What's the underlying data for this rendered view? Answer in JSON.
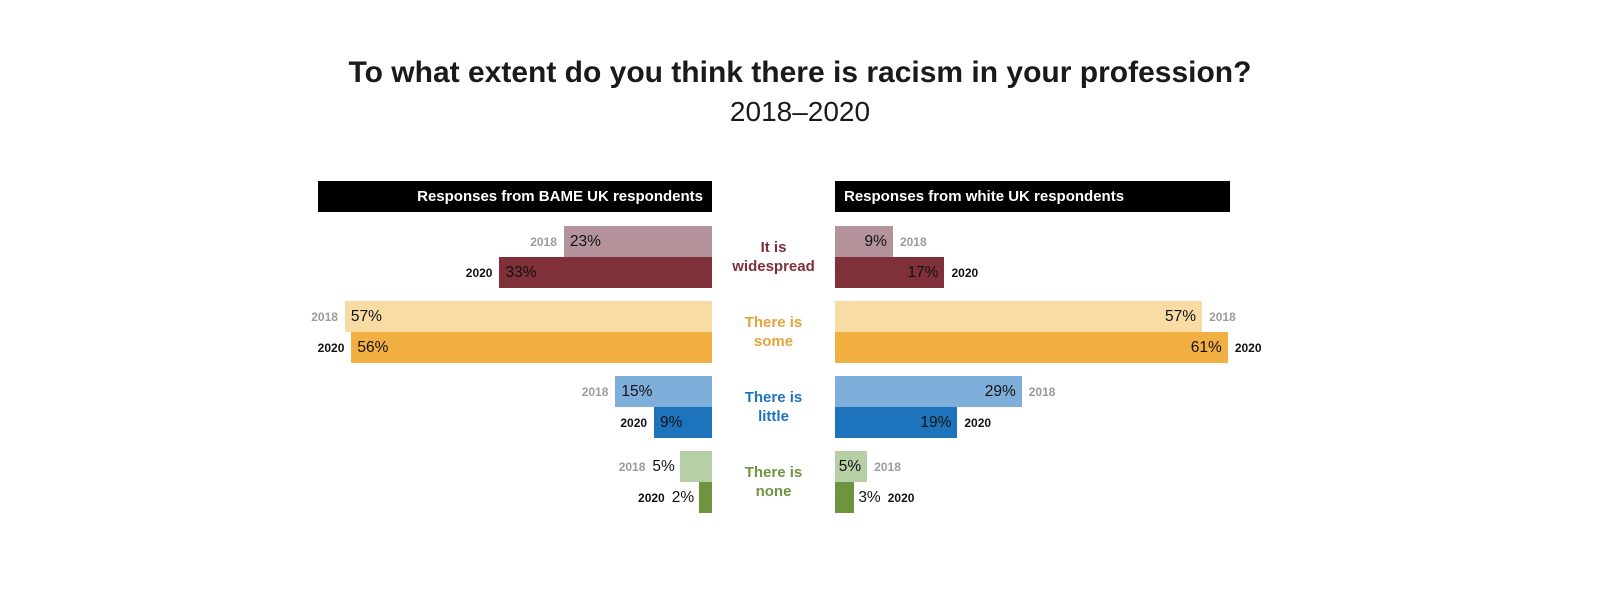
{
  "title": "To what extent do you think there is racism in your profession?",
  "subtitle": "2018–2020",
  "headers": {
    "left": "Responses from BAME UK respondents",
    "right": "Responses from white UK respondents"
  },
  "colors": {
    "header_bg": "#000000",
    "header_text": "#ffffff",
    "year_2018_label": "#9b9b9b",
    "year_2020_label": "#111111",
    "widespread_2018": "#b4949a",
    "widespread_2020": "#7f3039",
    "some_2018": "#f8dca4",
    "some_2020": "#f2b042",
    "little_2018": "#7eafda",
    "little_2020": "#1d74bd",
    "none_2018": "#b7cfa5",
    "none_2020": "#6f9440",
    "label_widespread": "#7f3039",
    "label_some": "#e2a33b",
    "label_little": "#1d74bd",
    "label_none": "#6f9440"
  },
  "chart_data": {
    "type": "bar",
    "variant": "diverging grouped horizontal bars (two mirrored panels)",
    "title": "To what extent do you think there is racism in your profession?",
    "subtitle": "2018–2020",
    "unit": "%",
    "categories": [
      "It is widespread",
      "There is some",
      "There is little",
      "There is none"
    ],
    "panels": [
      {
        "name": "Responses from BAME UK respondents",
        "side": "left",
        "series": [
          {
            "name": "2018",
            "values": [
              23,
              57,
              15,
              5
            ]
          },
          {
            "name": "2020",
            "values": [
              33,
              56,
              9,
              2
            ]
          }
        ]
      },
      {
        "name": "Responses from white UK respondents",
        "side": "right",
        "series": [
          {
            "name": "2018",
            "values": [
              9,
              57,
              29,
              5
            ]
          },
          {
            "name": "2020",
            "values": [
              17,
              61,
              19,
              3
            ]
          }
        ]
      }
    ],
    "xlim": [
      0,
      61
    ],
    "value_labels": "percentage shown at the inner end of each bar",
    "legend": "year label (2018 grey, 2020 black) beside each bar"
  },
  "rows": [
    {
      "label": "It is widespread",
      "left": {
        "y2018": {
          "year": "2018",
          "pct": "23%",
          "value": 23
        },
        "y2020": {
          "year": "2020",
          "pct": "33%",
          "value": 33
        }
      },
      "right": {
        "y2018": {
          "year": "2018",
          "pct": "9%",
          "value": 9
        },
        "y2020": {
          "year": "2020",
          "pct": "17%",
          "value": 17
        }
      }
    },
    {
      "label": "There is some",
      "left": {
        "y2018": {
          "year": "2018",
          "pct": "57%",
          "value": 57
        },
        "y2020": {
          "year": "2020",
          "pct": "56%",
          "value": 56
        }
      },
      "right": {
        "y2018": {
          "year": "2018",
          "pct": "57%",
          "value": 57
        },
        "y2020": {
          "year": "2020",
          "pct": "61%",
          "value": 61
        }
      }
    },
    {
      "label": "There is little",
      "left": {
        "y2018": {
          "year": "2018",
          "pct": "15%",
          "value": 15
        },
        "y2020": {
          "year": "2020",
          "pct": "9%",
          "value": 9
        }
      },
      "right": {
        "y2018": {
          "year": "2018",
          "pct": "29%",
          "value": 29
        },
        "y2020": {
          "year": "2020",
          "pct": "19%",
          "value": 19
        }
      }
    },
    {
      "label": "There is none",
      "left": {
        "y2018": {
          "year": "2018",
          "pct": "5%",
          "value": 5
        },
        "y2020": {
          "year": "2020",
          "pct": "2%",
          "value": 2
        }
      },
      "right": {
        "y2018": {
          "year": "2018",
          "pct": "5%",
          "value": 5
        },
        "y2020": {
          "year": "2020",
          "pct": "3%",
          "value": 3
        }
      }
    }
  ]
}
